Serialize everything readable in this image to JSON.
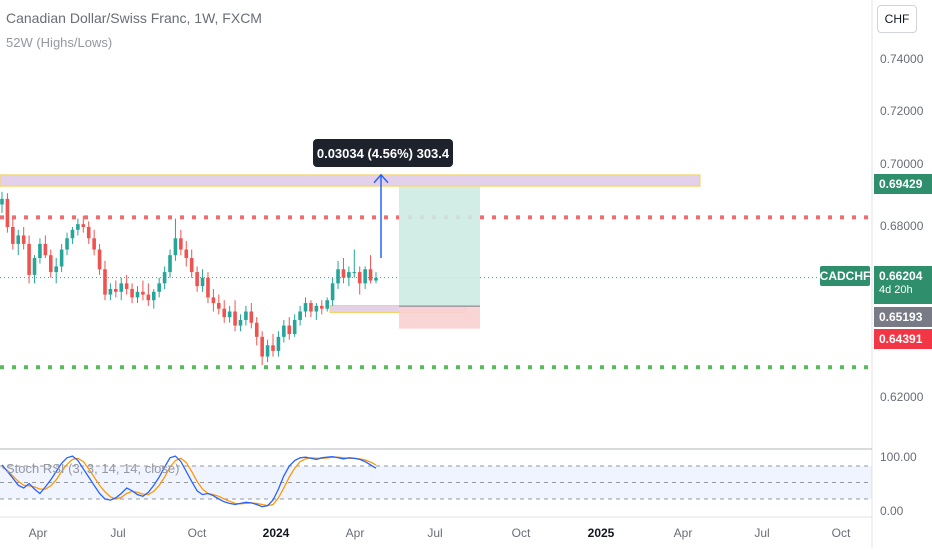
{
  "header": {
    "title": "Canadian Dollar/Swiss Franc, 1W, FXCM",
    "indicator": "52W (Highs/Lows)",
    "currency_button": "CHF"
  },
  "price_axis": {
    "ticks": [
      "0.74000",
      "0.72000",
      "0.70000",
      "0.68000",
      "0.62000"
    ]
  },
  "tags": {
    "symbol": "CADCHF",
    "last_price": "0.66204",
    "countdown": "4d 20h",
    "target_price": "0.69429",
    "entry_price": "0.65193",
    "stop_price": "0.64391"
  },
  "measure_label": "0.03034 (4.56%) 303.4",
  "stoch": {
    "label": "Stoch RSI (3, 3, 14, 14, close)",
    "ticks": [
      "100.00",
      "0.00"
    ]
  },
  "time_axis": {
    "ticks": [
      {
        "label": "Apr",
        "year": false
      },
      {
        "label": "Jul",
        "year": false
      },
      {
        "label": "Oct",
        "year": false
      },
      {
        "label": "2024",
        "year": true
      },
      {
        "label": "Apr",
        "year": false
      },
      {
        "label": "Jul",
        "year": false
      },
      {
        "label": "Oct",
        "year": false
      },
      {
        "label": "2025",
        "year": true
      },
      {
        "label": "Apr",
        "year": false
      },
      {
        "label": "Jul",
        "year": false
      },
      {
        "label": "Oct",
        "year": false
      }
    ]
  },
  "colors": {
    "up": "#26a69a",
    "down": "#ef5350",
    "resistance": "#f06c73",
    "support": "#5cb85c",
    "zone": "#d9c2e6",
    "profit": "#cdebe2",
    "loss": "#f9d0d2",
    "arrow": "#2962ff",
    "k_line": "#2962ff",
    "d_line": "#ff9800"
  },
  "chart_data": {
    "type": "candlestick",
    "symbol": "CADCHF",
    "timeframe": "1W",
    "x_range": [
      "2023-02",
      "2025-10"
    ],
    "ylim": [
      0.612,
      0.748
    ],
    "last_price": 0.66204,
    "levels": {
      "resistance_dotted": 0.6834,
      "support_dotted": 0.6302,
      "target": 0.69429,
      "entry": 0.65193,
      "stop": 0.64391
    },
    "zones": [
      {
        "name": "upper_supply",
        "from": 0.6945,
        "to": 0.6985
      },
      {
        "name": "lower_demand",
        "from": 0.6496,
        "to": 0.6521
      }
    ],
    "ohlc_weekly": [
      [
        0.688,
        0.6925,
        0.685,
        0.69
      ],
      [
        0.69,
        0.692,
        0.678,
        0.68
      ],
      [
        0.68,
        0.683,
        0.672,
        0.674
      ],
      [
        0.674,
        0.679,
        0.67,
        0.677
      ],
      [
        0.677,
        0.68,
        0.672,
        0.674
      ],
      [
        0.674,
        0.677,
        0.66,
        0.663
      ],
      [
        0.663,
        0.67,
        0.66,
        0.669
      ],
      [
        0.669,
        0.676,
        0.667,
        0.674
      ],
      [
        0.674,
        0.677,
        0.669,
        0.67
      ],
      [
        0.67,
        0.672,
        0.662,
        0.664
      ],
      [
        0.664,
        0.669,
        0.66,
        0.666
      ],
      [
        0.666,
        0.674,
        0.664,
        0.672
      ],
      [
        0.672,
        0.678,
        0.67,
        0.676
      ],
      [
        0.676,
        0.68,
        0.674,
        0.679
      ],
      [
        0.679,
        0.683,
        0.677,
        0.681
      ],
      [
        0.681,
        0.684,
        0.678,
        0.68
      ],
      [
        0.68,
        0.682,
        0.674,
        0.676
      ],
      [
        0.676,
        0.679,
        0.67,
        0.672
      ],
      [
        0.672,
        0.674,
        0.663,
        0.665
      ],
      [
        0.665,
        0.668,
        0.654,
        0.656
      ],
      [
        0.656,
        0.66,
        0.654,
        0.658
      ],
      [
        0.658,
        0.661,
        0.655,
        0.657
      ],
      [
        0.657,
        0.662,
        0.654,
        0.66
      ],
      [
        0.66,
        0.663,
        0.656,
        0.658
      ],
      [
        0.658,
        0.66,
        0.653,
        0.655
      ],
      [
        0.655,
        0.659,
        0.653,
        0.657
      ],
      [
        0.657,
        0.661,
        0.654,
        0.656
      ],
      [
        0.656,
        0.66,
        0.652,
        0.654
      ],
      [
        0.654,
        0.658,
        0.651,
        0.657
      ],
      [
        0.657,
        0.662,
        0.655,
        0.66
      ],
      [
        0.66,
        0.666,
        0.658,
        0.664
      ],
      [
        0.664,
        0.672,
        0.662,
        0.67
      ],
      [
        0.67,
        0.683,
        0.668,
        0.676
      ],
      [
        0.676,
        0.679,
        0.67,
        0.672
      ],
      [
        0.672,
        0.675,
        0.666,
        0.669
      ],
      [
        0.669,
        0.672,
        0.662,
        0.664
      ],
      [
        0.664,
        0.666,
        0.657,
        0.659
      ],
      [
        0.659,
        0.665,
        0.657,
        0.662
      ],
      [
        0.662,
        0.664,
        0.653,
        0.655
      ],
      [
        0.655,
        0.658,
        0.65,
        0.653
      ],
      [
        0.653,
        0.656,
        0.649,
        0.651
      ],
      [
        0.651,
        0.654,
        0.646,
        0.648
      ],
      [
        0.648,
        0.652,
        0.646,
        0.65
      ],
      [
        0.65,
        0.654,
        0.643,
        0.645
      ],
      [
        0.645,
        0.649,
        0.643,
        0.647
      ],
      [
        0.647,
        0.652,
        0.645,
        0.65
      ],
      [
        0.65,
        0.653,
        0.644,
        0.646
      ],
      [
        0.646,
        0.648,
        0.638,
        0.641
      ],
      [
        0.641,
        0.643,
        0.631,
        0.634
      ],
      [
        0.634,
        0.64,
        0.632,
        0.638
      ],
      [
        0.638,
        0.642,
        0.634,
        0.636
      ],
      [
        0.636,
        0.643,
        0.634,
        0.641
      ],
      [
        0.641,
        0.647,
        0.639,
        0.645
      ],
      [
        0.645,
        0.648,
        0.64,
        0.642
      ],
      [
        0.642,
        0.649,
        0.641,
        0.647
      ],
      [
        0.647,
        0.652,
        0.645,
        0.65
      ],
      [
        0.65,
        0.655,
        0.648,
        0.653
      ],
      [
        0.653,
        0.654,
        0.648,
        0.65
      ],
      [
        0.65,
        0.653,
        0.647,
        0.652
      ],
      [
        0.652,
        0.654,
        0.649,
        0.651
      ],
      [
        0.651,
        0.655,
        0.65,
        0.654
      ],
      [
        0.654,
        0.662,
        0.652,
        0.66
      ],
      [
        0.66,
        0.668,
        0.658,
        0.665
      ],
      [
        0.665,
        0.669,
        0.66,
        0.662
      ],
      [
        0.662,
        0.666,
        0.659,
        0.664
      ],
      [
        0.664,
        0.672,
        0.662,
        0.664
      ],
      [
        0.664,
        0.666,
        0.656,
        0.66
      ],
      [
        0.66,
        0.666,
        0.658,
        0.665
      ],
      [
        0.665,
        0.67,
        0.66,
        0.661
      ],
      [
        0.661,
        0.664,
        0.66,
        0.662
      ]
    ],
    "stoch_rsi": {
      "label": "Stoch RSI (3, 3, 14, 14, close)",
      "ylim": [
        0,
        100
      ],
      "bands": [
        80,
        20
      ],
      "k": [
        82,
        70,
        58,
        45,
        40,
        48,
        38,
        30,
        42,
        55,
        70,
        85,
        95,
        98,
        90,
        75,
        60,
        45,
        30,
        20,
        18,
        22,
        30,
        40,
        35,
        28,
        25,
        32,
        45,
        60,
        78,
        95,
        98,
        88,
        70,
        52,
        35,
        28,
        30,
        26,
        20,
        15,
        12,
        10,
        12,
        14,
        13,
        10,
        6,
        8,
        18,
        38,
        62,
        80,
        90,
        95,
        96,
        94,
        92,
        95,
        96,
        97,
        95,
        93,
        95,
        94,
        92,
        88,
        82,
        76
      ],
      "d": [
        78,
        72,
        62,
        52,
        45,
        44,
        42,
        38,
        38,
        44,
        55,
        70,
        83,
        92,
        94,
        88,
        75,
        60,
        45,
        33,
        24,
        20,
        23,
        30,
        34,
        32,
        29,
        28,
        34,
        45,
        60,
        78,
        90,
        94,
        86,
        70,
        52,
        38,
        30,
        28,
        25,
        20,
        16,
        12,
        11,
        12,
        13,
        12,
        10,
        8,
        10,
        22,
        40,
        60,
        76,
        88,
        93,
        95,
        94,
        94,
        95,
        96,
        96,
        95,
        94,
        94,
        93,
        91,
        87,
        82
      ]
    }
  }
}
